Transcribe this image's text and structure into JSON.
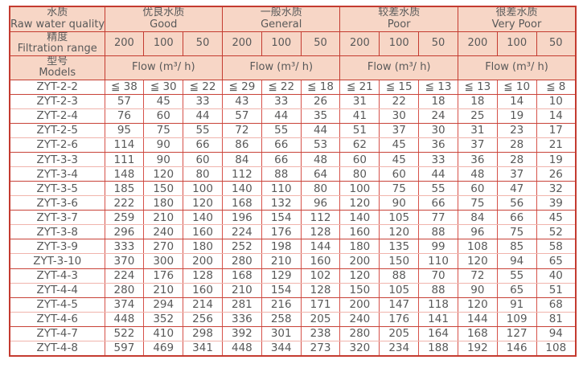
{
  "colors": {
    "header_bg": "#f7d6c6",
    "border_dark": "#c43b30",
    "border_mid": "#d6524a",
    "border_light": "#f0b4ac",
    "text": "#595959"
  },
  "table": {
    "corner": {
      "zh": "水质",
      "en": "Raw water quality"
    },
    "groups": [
      {
        "zh": "优良水质",
        "en": "Good"
      },
      {
        "zh": "一般水质",
        "en": "General"
      },
      {
        "zh": "较差水质",
        "en": "Poor"
      },
      {
        "zh": "很差水质",
        "en": "Very Poor"
      }
    ],
    "filtration": {
      "zh": "精度",
      "en": "Filtration range"
    },
    "filtration_values": [
      "200",
      "100",
      "50"
    ],
    "models": {
      "zh": "型号",
      "en": "Models"
    },
    "flow_label": "Flow (m³/ h)",
    "rows": [
      {
        "model": "ZYT-2-2",
        "values": [
          "≦ 38",
          "≦ 30",
          "≦ 22",
          "≦ 29",
          "≦ 22",
          "≦ 18",
          "≦ 21",
          "≦ 15",
          "≦ 13",
          "≦ 13",
          "≦ 10",
          "≦ 8"
        ]
      },
      {
        "model": "ZYT-2-3",
        "values": [
          "57",
          "45",
          "33",
          "43",
          "33",
          "26",
          "31",
          "22",
          "18",
          "18",
          "14",
          "10"
        ]
      },
      {
        "model": "ZYT-2-4",
        "values": [
          "76",
          "60",
          "44",
          "57",
          "44",
          "35",
          "41",
          "30",
          "24",
          "25",
          "19",
          "14"
        ]
      },
      {
        "model": "ZYT-2-5",
        "values": [
          "95",
          "75",
          "55",
          "72",
          "55",
          "44",
          "51",
          "37",
          "30",
          "31",
          "23",
          "17"
        ]
      },
      {
        "model": "ZYT-2-6",
        "values": [
          "114",
          "90",
          "66",
          "86",
          "66",
          "53",
          "62",
          "45",
          "36",
          "37",
          "28",
          "21"
        ]
      },
      {
        "model": "ZYT-3-3",
        "values": [
          "111",
          "90",
          "60",
          "84",
          "66",
          "48",
          "60",
          "45",
          "33",
          "36",
          "28",
          "19"
        ]
      },
      {
        "model": "ZYT-3-4",
        "values": [
          "148",
          "120",
          "80",
          "112",
          "88",
          "64",
          "80",
          "60",
          "44",
          "48",
          "37",
          "26"
        ]
      },
      {
        "model": "ZYT-3-5",
        "values": [
          "185",
          "150",
          "100",
          "140",
          "110",
          "80",
          "100",
          "75",
          "55",
          "60",
          "47",
          "32"
        ]
      },
      {
        "model": "ZYT-3-6",
        "values": [
          "222",
          "180",
          "120",
          "168",
          "132",
          "96",
          "120",
          "90",
          "66",
          "75",
          "56",
          "39"
        ]
      },
      {
        "model": "ZYT-3-7",
        "values": [
          "259",
          "210",
          "140",
          "196",
          "154",
          "112",
          "140",
          "105",
          "77",
          "84",
          "66",
          "45"
        ]
      },
      {
        "model": "ZYT-3-8",
        "values": [
          "296",
          "240",
          "160",
          "224",
          "176",
          "128",
          "160",
          "120",
          "88",
          "96",
          "75",
          "52"
        ]
      },
      {
        "model": "ZYT-3-9",
        "values": [
          "333",
          "270",
          "180",
          "252",
          "198",
          "144",
          "180",
          "135",
          "99",
          "108",
          "85",
          "58"
        ]
      },
      {
        "model": "ZYT-3-10",
        "values": [
          "370",
          "300",
          "200",
          "280",
          "210",
          "160",
          "200",
          "150",
          "110",
          "120",
          "94",
          "65"
        ]
      },
      {
        "model": "ZYT-4-3",
        "values": [
          "224",
          "176",
          "128",
          "168",
          "129",
          "102",
          "120",
          "88",
          "70",
          "72",
          "55",
          "40"
        ]
      },
      {
        "model": "ZYT-4-4",
        "values": [
          "280",
          "210",
          "160",
          "210",
          "154",
          "128",
          "150",
          "105",
          "88",
          "90",
          "65",
          "51"
        ]
      },
      {
        "model": "ZYT-4-5",
        "values": [
          "374",
          "294",
          "214",
          "281",
          "216",
          "171",
          "200",
          "147",
          "118",
          "120",
          "91",
          "68"
        ]
      },
      {
        "model": "ZYT-4-6",
        "values": [
          "448",
          "352",
          "256",
          "336",
          "258",
          "205",
          "240",
          "176",
          "141",
          "144",
          "109",
          "81"
        ]
      },
      {
        "model": "ZYT-4-7",
        "values": [
          "522",
          "410",
          "298",
          "392",
          "301",
          "238",
          "280",
          "205",
          "164",
          "168",
          "127",
          "94"
        ]
      },
      {
        "model": "ZYT-4-8",
        "values": [
          "597",
          "469",
          "341",
          "448",
          "344",
          "273",
          "320",
          "234",
          "188",
          "192",
          "146",
          "108"
        ]
      }
    ]
  }
}
